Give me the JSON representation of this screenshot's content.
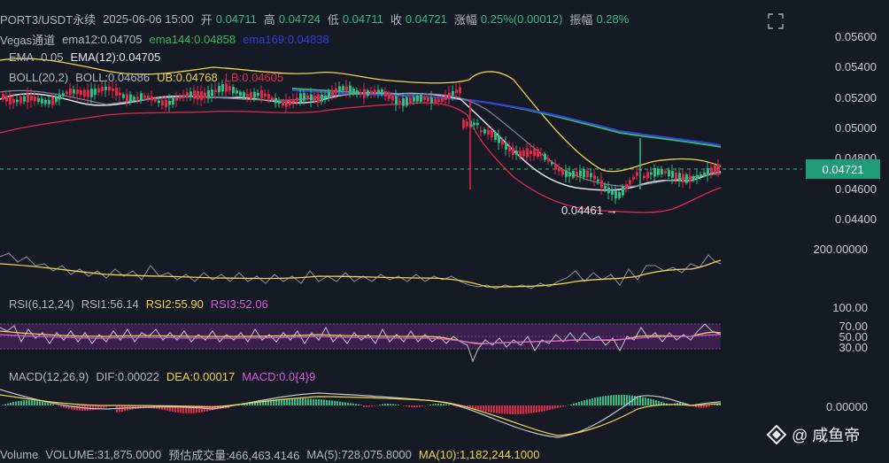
{
  "header": {
    "symbol": "PORT3/USDT永续",
    "datetime": "2025-06-06 15:00",
    "open_label": "开",
    "open_value": "0.04711",
    "high_label": "高",
    "high_value": "0.04724",
    "low_label": "低",
    "low_value": "0.04711",
    "close_label": "收",
    "close_value": "0.04721",
    "change_label": "涨幅",
    "change_value": "0.25%(0.00012)",
    "amplitude_label": "振幅",
    "amplitude_value": "0.28%"
  },
  "indicators": {
    "vegas_label": "Vegas通道",
    "ema12": "ema12:0.04705",
    "ema144": "ema144:0.04858",
    "ema169": "ema169:0.04838",
    "ema_prefix": "EMA",
    "ema_value": "0.05",
    "ema12_big": "EMA(12):0.04705",
    "boll_label": "BOLL(20,2)",
    "boll_value": "BOLL:0.04686",
    "ub": "UB:0.04768",
    "lb": "LB:0.04605"
  },
  "price_axis": [
    "0.05600",
    "0.05400",
    "0.05200",
    "0.05000",
    "0.04800",
    "0.04600",
    "0.04400"
  ],
  "current_price": "0.04721",
  "low_marker": "0.04461 →",
  "sub1_axis": "200.00000",
  "rsi": {
    "label": "RSI(6,12,24)",
    "rsi1": "RSI1:56.14",
    "rsi2": "RSI2:55.90",
    "rsi3": "RSI3:52.06",
    "axis": [
      "100.00",
      "70.00",
      "50.00",
      "30.00"
    ]
  },
  "macd": {
    "label": "MACD(12,26,9)",
    "dif": "DIF:0.00022",
    "dea": "DEA:0.00017",
    "macd": "MACD:0.0{4}9",
    "axis": "0.00000"
  },
  "volume": {
    "label": "Volume",
    "volume": "VOLUME:31,875.0000",
    "estimate": "预估成交量:466,463.4146",
    "ma5": "MA(5):728,075.8000",
    "ma10": "MA(10):1,182,244.1000"
  },
  "watermark": "@ 咸鱼帝",
  "colors": {
    "background": "#161a25",
    "up": "#2ebd85",
    "down": "#e0294a",
    "ub": "#f0d34b",
    "lb": "#e0294a",
    "ema144": "#3bb55a",
    "ema169": "#2f3ee0",
    "rsi2": "#f0d34b",
    "rsi3": "#d85ad8",
    "current_price": "#1f9c77"
  }
}
